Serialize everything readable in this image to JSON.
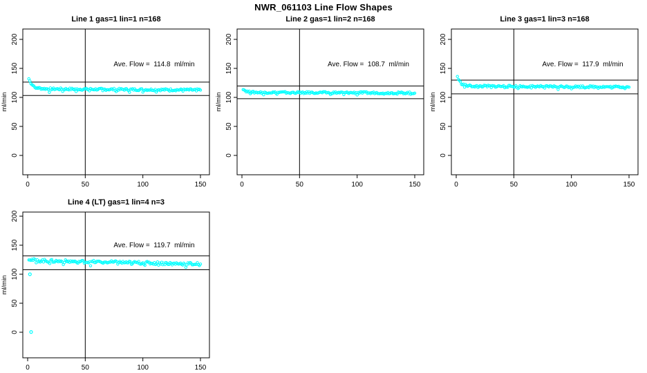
{
  "main_title": "NWR_061103  Line Flow Shapes",
  "colors": {
    "point": "#00ffff",
    "axis": "#000000",
    "background": "#ffffff"
  },
  "chart_data": [
    {
      "type": "scatter",
      "title": "Line 1 gas=1 lin=1 n=168",
      "ylabel": "ml/min",
      "ave_label": "Ave. Flow =  114.8  ml/min",
      "ave_flow": 114.8,
      "n": 168,
      "x_ticks": [
        0,
        50,
        100,
        150
      ],
      "y_ticks": [
        0,
        50,
        100,
        150,
        200
      ],
      "xlim": [
        -4.2,
        157.8
      ],
      "ylim": [
        -33,
        218
      ],
      "vline_x": 50,
      "hlines": [
        126.3,
        103.3
      ],
      "band": {
        "x_start": 1,
        "x_end": 150,
        "count": 168,
        "start": 132,
        "settle": 114.8,
        "decay": 3.5,
        "drift": -2,
        "noise": 1.8
      },
      "outliers": []
    },
    {
      "type": "scatter",
      "title": "Line 2 gas=1 lin=2 n=168",
      "ylabel": "ml/min",
      "ave_label": "Ave. Flow =  108.7  ml/min",
      "ave_flow": 108.7,
      "n": 168,
      "x_ticks": [
        0,
        50,
        100,
        150
      ],
      "y_ticks": [
        0,
        50,
        100,
        150,
        200
      ],
      "xlim": [
        -4.2,
        157.8
      ],
      "ylim": [
        -33,
        218
      ],
      "vline_x": 50,
      "hlines": [
        119.6,
        97.8
      ],
      "band": {
        "x_start": 1,
        "x_end": 150,
        "count": 168,
        "start": 115,
        "settle": 108.7,
        "decay": 2.5,
        "drift": -1,
        "noise": 1.6
      },
      "outliers": []
    },
    {
      "type": "scatter",
      "title": "Line 3 gas=1 lin=3 n=168",
      "ylabel": "ml/min",
      "ave_label": "Ave. Flow =  117.9  ml/min",
      "ave_flow": 117.9,
      "n": 168,
      "x_ticks": [
        0,
        50,
        100,
        150
      ],
      "y_ticks": [
        0,
        50,
        100,
        150,
        200
      ],
      "xlim": [
        -4.2,
        157.8
      ],
      "ylim": [
        -33,
        218
      ],
      "vline_x": 50,
      "hlines": [
        129.7,
        106.1
      ],
      "band": {
        "x_start": 1,
        "x_end": 150,
        "count": 168,
        "start": 136,
        "settle": 119.5,
        "decay": 2.8,
        "drift": -1.5,
        "noise": 1.7
      },
      "outliers": []
    },
    {
      "type": "scatter",
      "title": "Line 4 (LT) gas=1 lin=4 n=3",
      "ylabel": "ml/min",
      "ave_label": "Ave. Flow =  119.7  ml/min",
      "ave_flow": 119.7,
      "n": 3,
      "x_ticks": [
        0,
        50,
        100,
        150
      ],
      "y_ticks": [
        0,
        50,
        100,
        150,
        200
      ],
      "xlim": [
        -4.2,
        157.8
      ],
      "ylim": [
        -44,
        207
      ],
      "vline_x": 50,
      "hlines": [
        131.7,
        107.7
      ],
      "band": {
        "x_start": 1,
        "x_end": 150,
        "count": 165,
        "start": 127,
        "settle": 123.5,
        "decay": 4,
        "drift": -6,
        "noise": 2.6
      },
      "outliers": [
        [
          2,
          100
        ],
        [
          3,
          0.5
        ]
      ]
    }
  ]
}
